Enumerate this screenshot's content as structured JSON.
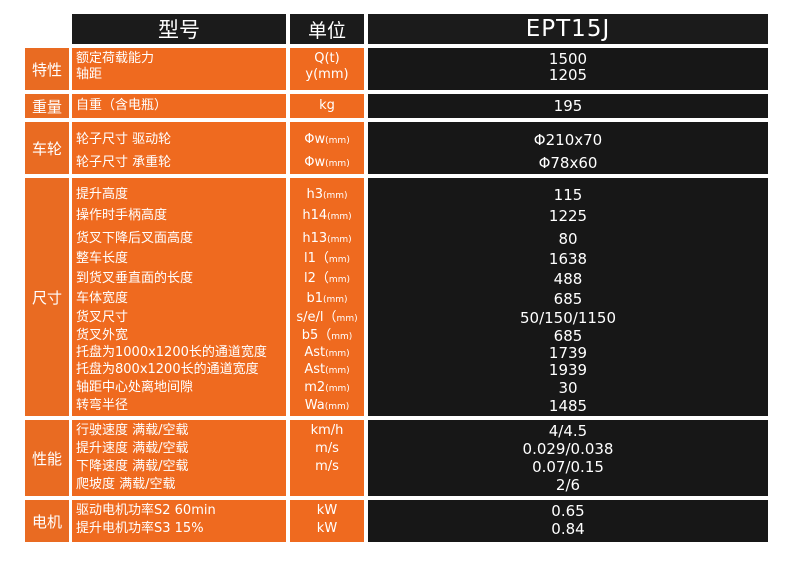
{
  "header": {
    "col_param": "型号",
    "col_unit": "单位",
    "col_model": "EPT15J"
  },
  "groups": [
    {
      "category": "特性",
      "rows": [
        {
          "param": "额定荷载能力",
          "unit": "Q(t)",
          "value": "1500"
        },
        {
          "param": "轴距",
          "unit": "y(mm)",
          "value": "1205"
        }
      ]
    },
    {
      "category": "重量",
      "rows": [
        {
          "param": "自重（含电瓶）",
          "unit": "kg",
          "value": "195"
        }
      ]
    },
    {
      "category": "车轮",
      "rows": [
        {
          "param": "轮子尺寸 驱动轮",
          "unit": "Φw",
          "unit_sub": "(mm)",
          "value": "Φ210x70"
        },
        {
          "param": "轮子尺寸 承重轮",
          "unit": "Φw",
          "unit_sub": "(mm)",
          "value": "Φ78x60"
        }
      ]
    },
    {
      "category": "尺寸",
      "rows": [
        {
          "param": "提升高度",
          "unit": "h3",
          "unit_sub": "(mm)",
          "value": "115"
        },
        {
          "param": "操作时手柄高度",
          "unit": "h14",
          "unit_sub": "(mm)",
          "value": "1225"
        },
        {
          "param": "货叉下降后叉面高度",
          "unit": "h13",
          "unit_sub": "(mm)",
          "value": "80"
        },
        {
          "param": "整车长度",
          "unit": "l1（",
          "unit_sub": "mm)",
          "value": "1638"
        },
        {
          "param": "到货叉垂直面的长度",
          "unit": "l2（",
          "unit_sub": "mm)",
          "value": "488"
        },
        {
          "param": "车体宽度",
          "unit": "b1",
          "unit_sub": "(mm)",
          "value": "685"
        },
        {
          "param": "货叉尺寸",
          "unit": "s/e/l（",
          "unit_sub": "mm)",
          "value": "50/150/1150"
        },
        {
          "param": "货叉外宽",
          "unit": "b5（",
          "unit_sub": "mm)",
          "value": "685"
        },
        {
          "param": "托盘为1000x1200长的通道宽度",
          "unit": "Ast",
          "unit_sub": "(mm)",
          "value": "1739"
        },
        {
          "param": "托盘为800x1200长的通道宽度",
          "unit": "Ast",
          "unit_sub": "(mm)",
          "value": "1939"
        },
        {
          "param": "轴距中心处离地间隙",
          "unit": "m2",
          "unit_sub": "(mm)",
          "value": "30"
        },
        {
          "param": "转弯半径",
          "unit": "Wa",
          "unit_sub": "(mm)",
          "value": "1485"
        }
      ]
    },
    {
      "category": "性能",
      "rows": [
        {
          "param": "行驶速度 满载/空载",
          "unit": "km/h",
          "value": "4/4.5"
        },
        {
          "param": "提升速度 满载/空载",
          "unit": "m/s",
          "value": "0.029/0.038"
        },
        {
          "param": "下降速度 满载/空载",
          "unit": "m/s",
          "value": "0.07/0.15"
        },
        {
          "param": "爬坡度 满载/空载",
          "unit": "",
          "value": "2/6"
        }
      ]
    },
    {
      "category": "电机",
      "rows": [
        {
          "param": "驱动电机功率S2 60min",
          "unit": "kW",
          "value": "0.65"
        },
        {
          "param": "提升电机功率S3 15%",
          "unit": "kW",
          "value": "0.84"
        }
      ]
    }
  ]
}
